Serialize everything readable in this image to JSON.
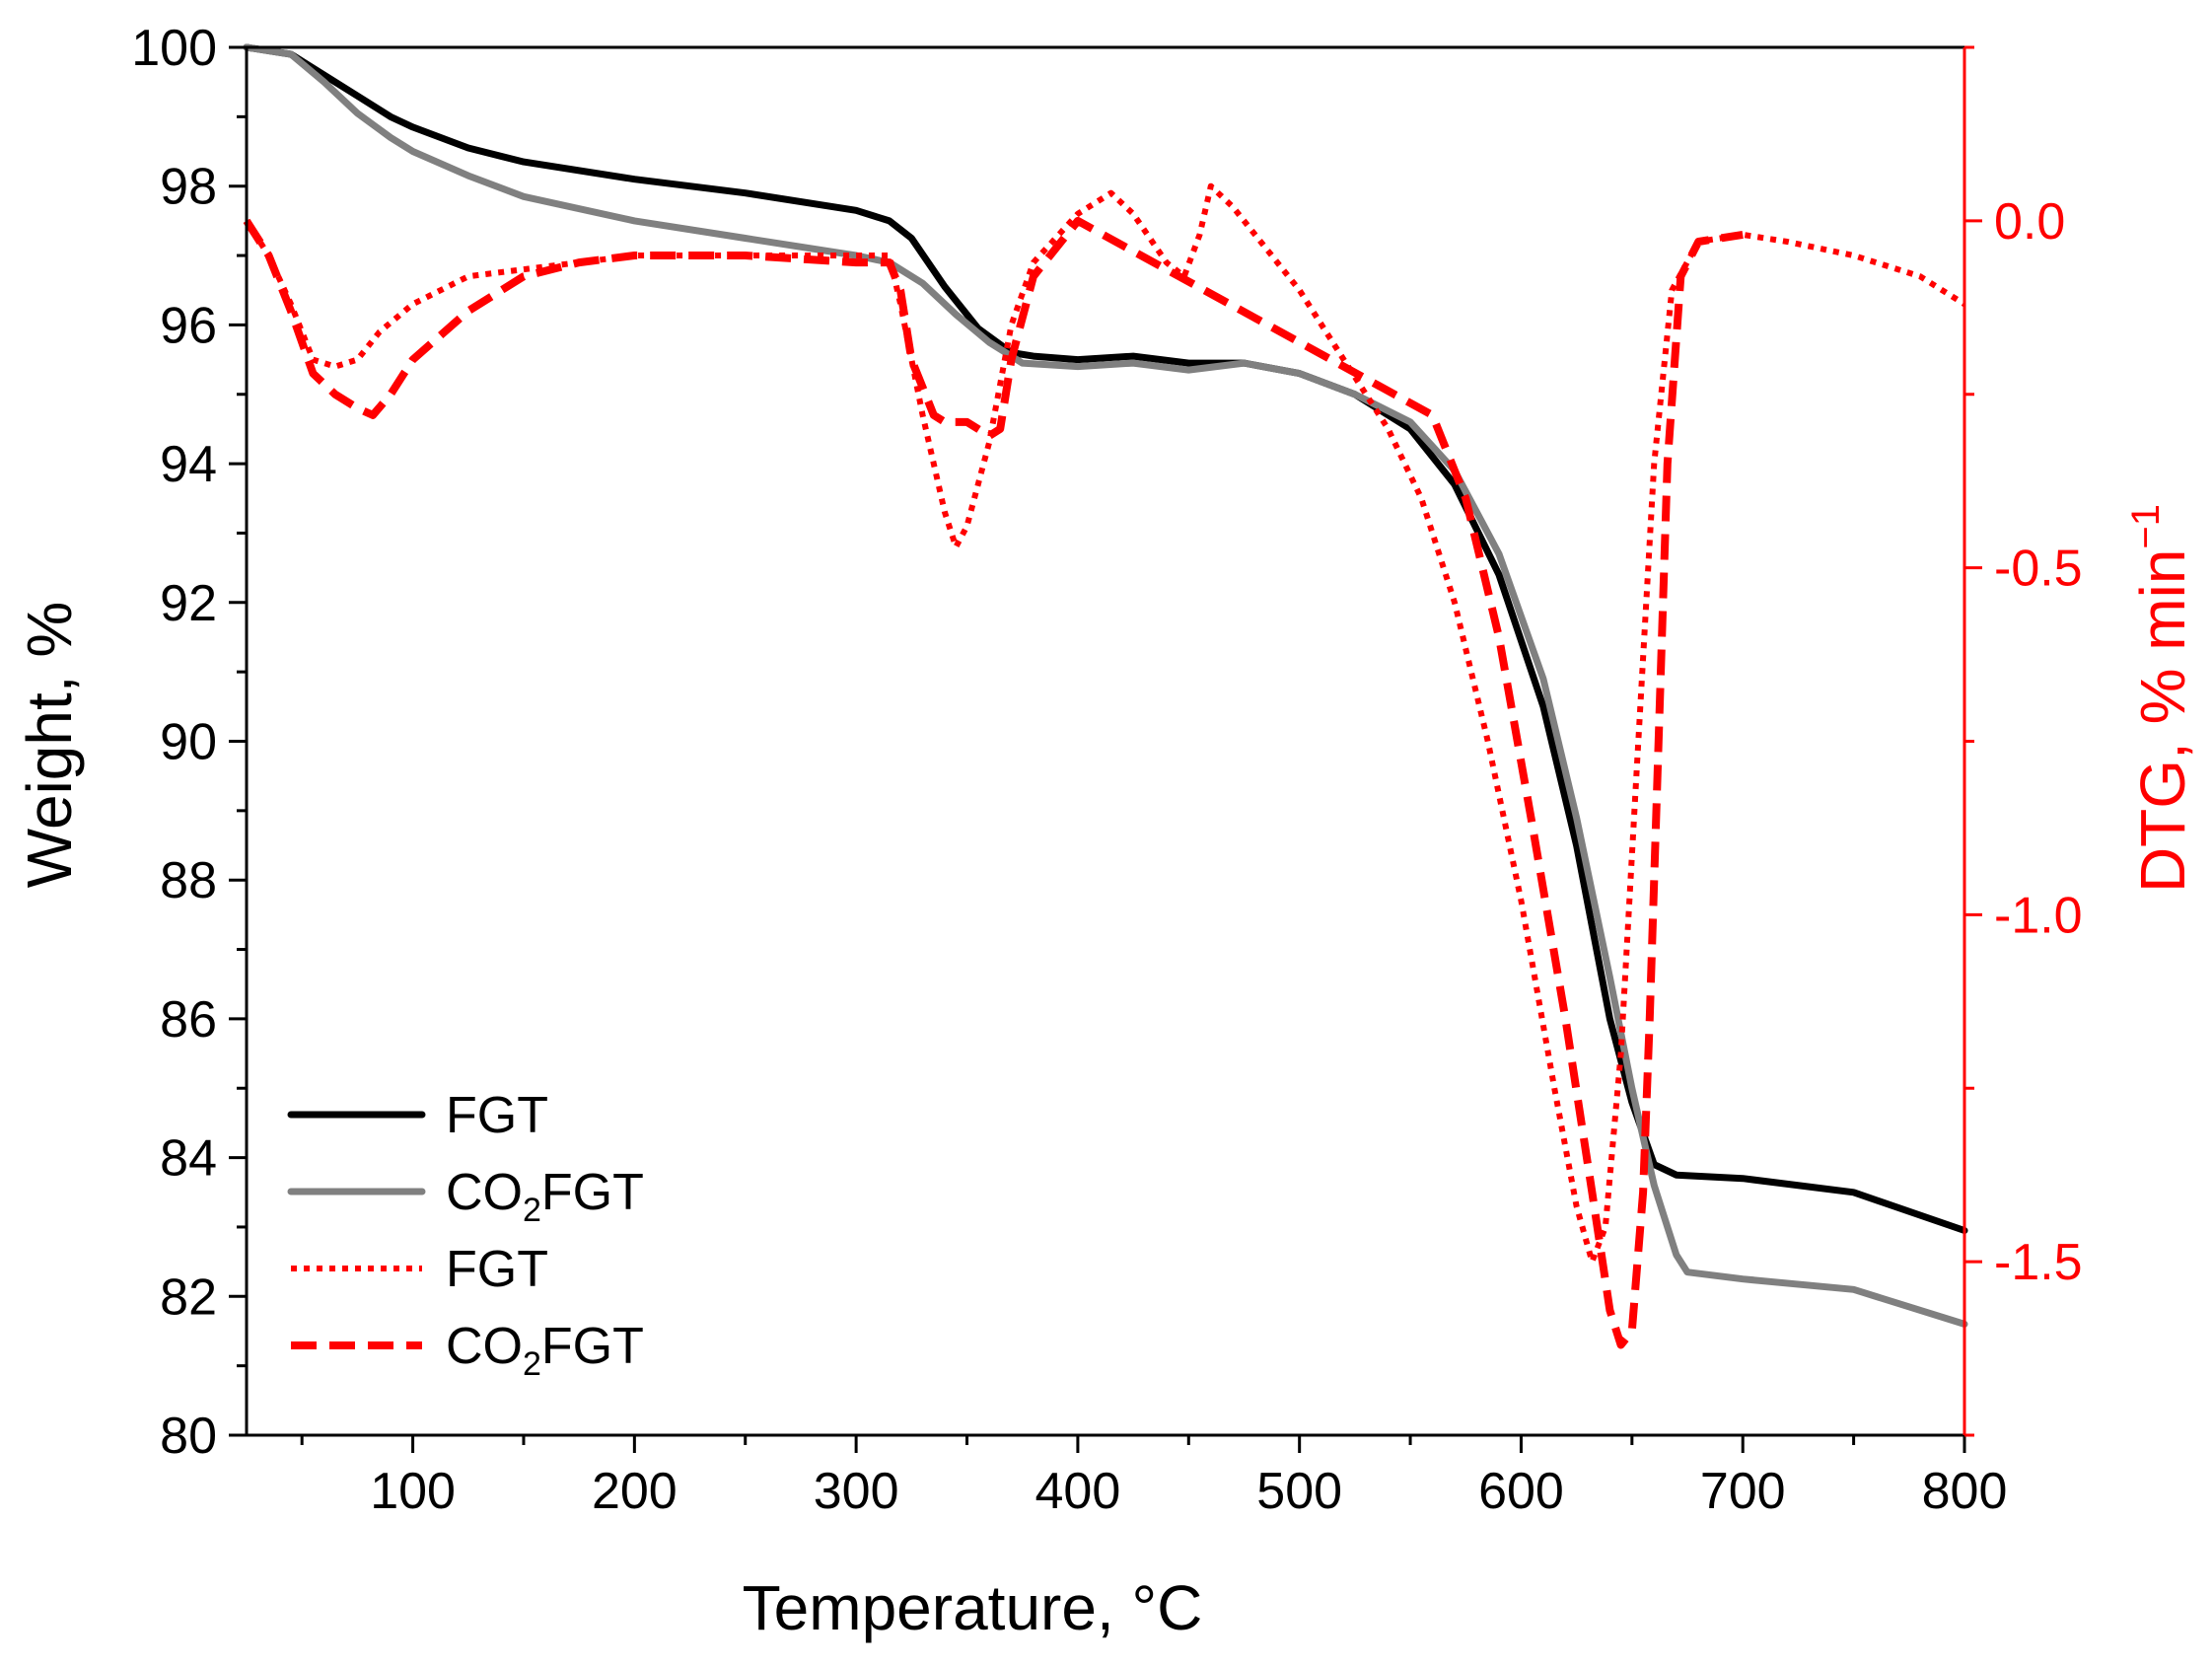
{
  "chart_data": {
    "type": "line",
    "title": "",
    "xlabel": "Temperature, °C",
    "ylabel": "Weight, %",
    "y2label_main": "DTG, % min",
    "y2label_sup": "−1",
    "xlim": [
      25,
      800
    ],
    "ylim": [
      80,
      100
    ],
    "y2lim": [
      -1.75,
      0.25
    ],
    "xticks": [
      100,
      200,
      300,
      400,
      500,
      600,
      700,
      800
    ],
    "yticks": [
      80,
      82,
      84,
      86,
      88,
      90,
      92,
      94,
      96,
      98,
      100
    ],
    "y2ticks": [
      0.0,
      -0.5,
      -1.0,
      -1.5
    ],
    "grid": false,
    "legend_position": "bottom-left",
    "colors": {
      "axis": "#000000",
      "secondary_axis": "#ff0000",
      "fgt_weight": "#000000",
      "co2fgt_weight": "#808080",
      "dtg": "#ff0000"
    },
    "series": [
      {
        "name": "FGT",
        "legend_main": "FGT",
        "legend_sub": "",
        "legend_tail": "",
        "axis": "left",
        "style": "solid",
        "color": "#000000",
        "x": [
          25,
          45,
          60,
          75,
          90,
          100,
          125,
          150,
          200,
          250,
          300,
          315,
          325,
          340,
          355,
          370,
          380,
          400,
          425,
          450,
          475,
          500,
          525,
          550,
          570,
          590,
          610,
          625,
          640,
          650,
          660,
          670,
          700,
          750,
          800
        ],
        "y": [
          100.0,
          99.9,
          99.6,
          99.3,
          99.0,
          98.85,
          98.55,
          98.35,
          98.1,
          97.9,
          97.65,
          97.5,
          97.25,
          96.55,
          95.95,
          95.6,
          95.55,
          95.5,
          95.55,
          95.45,
          95.45,
          95.3,
          95.0,
          94.5,
          93.7,
          92.4,
          90.5,
          88.5,
          86.0,
          84.8,
          83.9,
          83.75,
          83.7,
          83.5,
          82.95
        ]
      },
      {
        "name": "CO2FGT",
        "legend_main": "CO",
        "legend_sub": "2",
        "legend_tail": "FGT",
        "axis": "left",
        "style": "solid",
        "color": "#808080",
        "x": [
          25,
          45,
          60,
          75,
          90,
          100,
          125,
          150,
          200,
          250,
          300,
          315,
          330,
          345,
          360,
          375,
          400,
          425,
          450,
          475,
          500,
          525,
          550,
          570,
          590,
          610,
          625,
          640,
          650,
          660,
          670,
          675,
          700,
          750,
          800
        ],
        "y": [
          100.0,
          99.9,
          99.5,
          99.05,
          98.7,
          98.5,
          98.15,
          97.85,
          97.5,
          97.25,
          97.0,
          96.9,
          96.6,
          96.15,
          95.75,
          95.45,
          95.4,
          95.45,
          95.35,
          95.45,
          95.3,
          95.0,
          94.6,
          93.9,
          92.7,
          90.9,
          88.9,
          86.6,
          85.0,
          83.6,
          82.6,
          82.35,
          82.25,
          82.1,
          81.6
        ]
      },
      {
        "name": "FGT",
        "legend_main": "FGT",
        "legend_sub": "",
        "legend_tail": "",
        "axis": "right",
        "style": "dotted",
        "color": "#ff0000",
        "x": [
          25,
          35,
          45,
          55,
          65,
          75,
          85,
          100,
          125,
          150,
          175,
          200,
          250,
          300,
          315,
          320,
          330,
          340,
          345,
          350,
          360,
          370,
          380,
          400,
          415,
          425,
          440,
          448,
          455,
          460,
          470,
          500,
          520,
          540,
          555,
          570,
          585,
          600,
          615,
          625,
          632,
          638,
          645,
          652,
          660,
          668,
          680,
          700,
          720,
          750,
          780,
          800
        ],
        "y": [
          0.0,
          -0.05,
          -0.12,
          -0.2,
          -0.21,
          -0.2,
          -0.16,
          -0.12,
          -0.08,
          -0.07,
          -0.06,
          -0.05,
          -0.05,
          -0.05,
          -0.05,
          -0.12,
          -0.28,
          -0.42,
          -0.47,
          -0.44,
          -0.32,
          -0.15,
          -0.06,
          0.01,
          0.04,
          0.01,
          -0.06,
          -0.08,
          -0.02,
          0.05,
          0.02,
          -0.1,
          -0.2,
          -0.3,
          -0.4,
          -0.55,
          -0.75,
          -0.98,
          -1.25,
          -1.42,
          -1.5,
          -1.45,
          -1.2,
          -0.8,
          -0.35,
          -0.1,
          -0.03,
          -0.02,
          -0.03,
          -0.05,
          -0.08,
          -0.12
        ]
      },
      {
        "name": "CO2FGT",
        "legend_main": "CO",
        "legend_sub": "2",
        "legend_tail": "FGT",
        "axis": "right",
        "style": "dashed",
        "color": "#ff0000",
        "x": [
          25,
          35,
          45,
          55,
          65,
          75,
          82,
          90,
          100,
          125,
          150,
          175,
          200,
          250,
          300,
          315,
          320,
          325,
          330,
          335,
          340,
          350,
          355,
          360,
          365,
          370,
          380,
          400,
          560,
          575,
          590,
          605,
          620,
          632,
          640,
          645,
          650,
          655,
          658,
          662,
          666,
          672,
          680,
          700
        ],
        "y": [
          0.0,
          -0.05,
          -0.13,
          -0.22,
          -0.25,
          -0.27,
          -0.28,
          -0.25,
          -0.2,
          -0.13,
          -0.08,
          -0.06,
          -0.05,
          -0.05,
          -0.06,
          -0.06,
          -0.1,
          -0.2,
          -0.24,
          -0.28,
          -0.29,
          -0.29,
          -0.3,
          -0.31,
          -0.3,
          -0.2,
          -0.08,
          0.0,
          -0.28,
          -0.4,
          -0.6,
          -0.87,
          -1.15,
          -1.4,
          -1.57,
          -1.62,
          -1.6,
          -1.4,
          -1.15,
          -0.75,
          -0.35,
          -0.08,
          -0.03,
          -0.02
        ]
      }
    ]
  }
}
